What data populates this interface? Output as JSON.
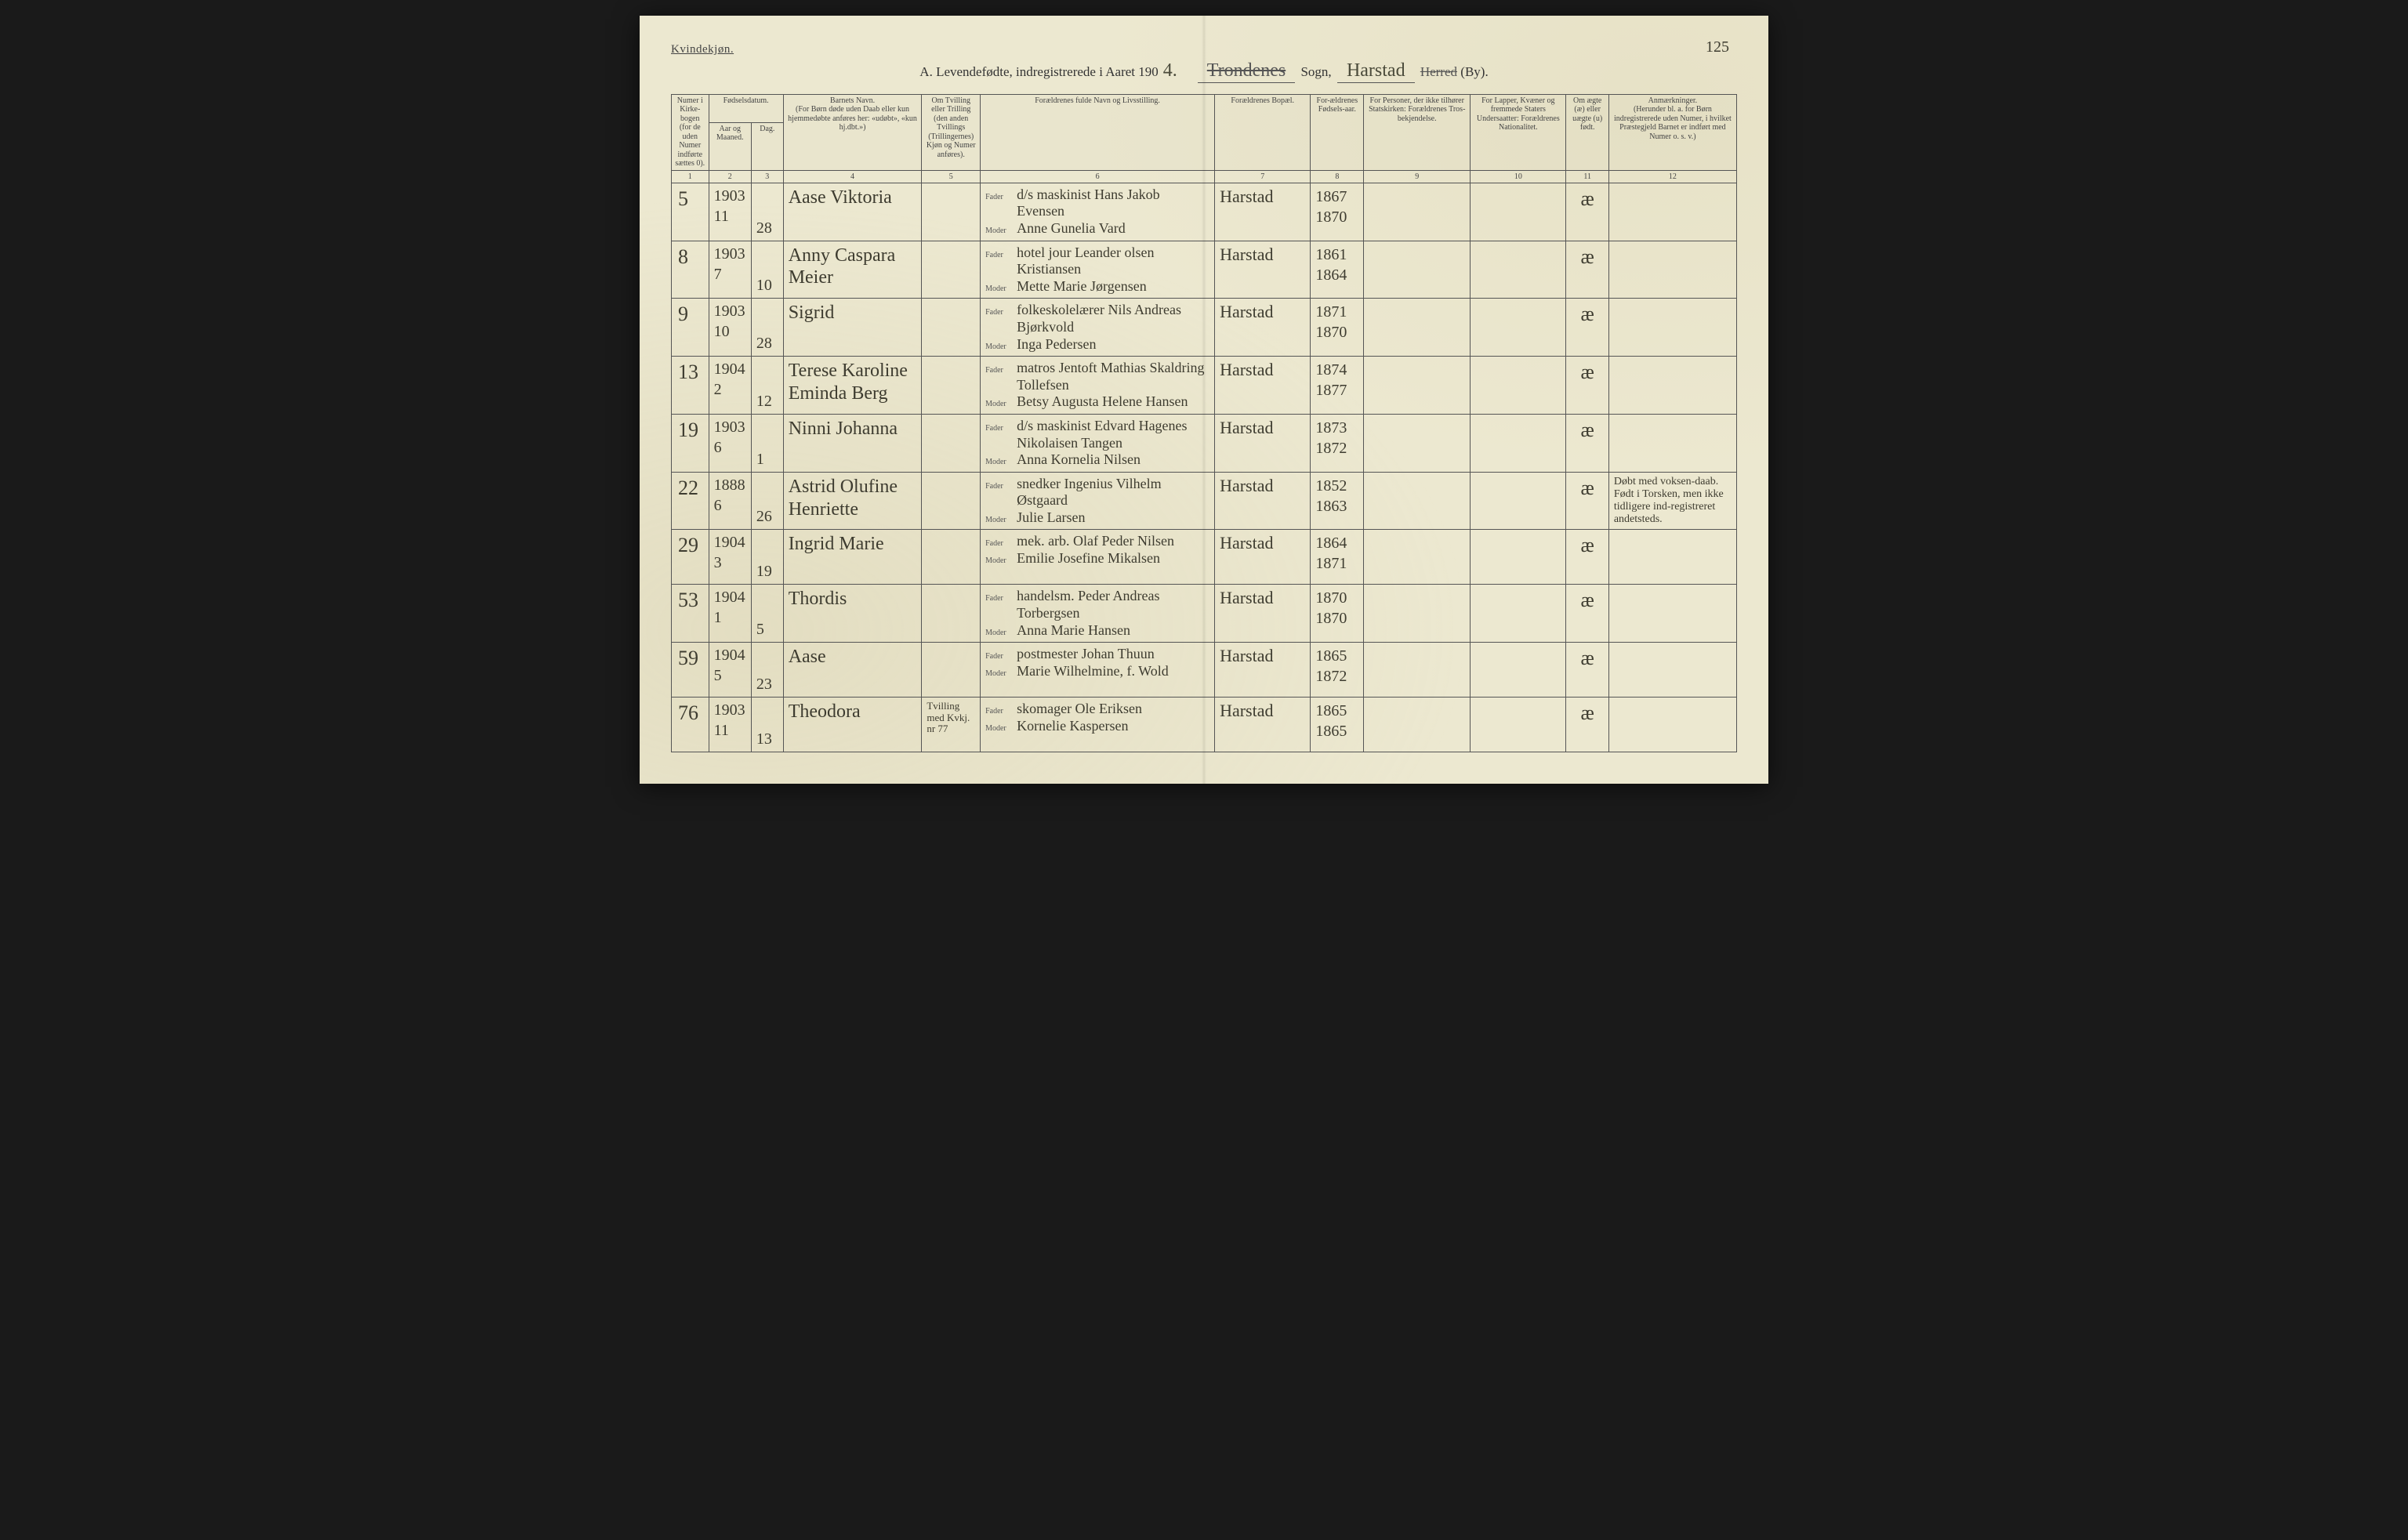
{
  "page": {
    "gender_label": "Kvindekjøn.",
    "page_number_handwritten": "125",
    "title_prefix": "A.  Levendefødte, indregistrerede i Aaret 190",
    "year_last_digit": "4.",
    "struck_word": "Trondenes",
    "sogn_label": "Sogn,",
    "sogn_value": "Harstad",
    "herred_label_struck": "Herred",
    "by_label": "(By)."
  },
  "headers": {
    "col1_a": "Numer i Kirke-bogen",
    "col1_b": "(for de uden Numer indførte sættes 0).",
    "col2_group": "Fødselsdatum.",
    "col2a": "Aar og Maaned.",
    "col2b": "Dag.",
    "col3": "Barnets Navn.",
    "col3_sub": "(For Børn døde uden Daab eller kun hjemmedøbte anføres her: «udøbt», «kun hj.dbt.»)",
    "col4": "Om Tvilling eller Trilling (den anden Tvillings (Trillingernes) Kjøn og Numer anføres).",
    "col5": "Forældrenes fulde Navn og Livsstilling.",
    "col6": "Forældrenes Bopæl.",
    "col7": "For-ældrenes Fødsels-aar.",
    "col8": "For Personer, der ikke tilhører Statskirken: Forældrenes Tros-bekjendelse.",
    "col9": "For Lapper, Kvæner og fremmede Staters Undersaatter: Forældrenes Nationalitet.",
    "col10": "Om ægte (æ) eller uægte (u) født.",
    "col11": "Anmærkninger.",
    "col11_sub": "(Herunder bl. a. for Børn indregistrerede uden Numer, i hvilket Præstegjeld Barnet er indført med Numer o. s. v.)",
    "father_label": "Fader",
    "mother_label": "Moder"
  },
  "colnums": [
    "1",
    "2",
    "3",
    "4",
    "5",
    "6",
    "7",
    "8",
    "9",
    "10",
    "11",
    "12"
  ],
  "rows": [
    {
      "num": "5",
      "year_month": "1903",
      "month": "11",
      "day": "28",
      "child_name": "Aase Viktoria",
      "twin": "",
      "father": "d/s maskinist Hans Jakob Evensen",
      "mother": "Anne Gunelia Vard",
      "residence": "Harstad",
      "father_year": "1867",
      "mother_year": "1870",
      "col8": "",
      "col9": "",
      "legit": "æ",
      "remarks": ""
    },
    {
      "num": "8",
      "year_month": "1903",
      "month": "7",
      "day": "10",
      "child_name": "Anny Caspara Meier",
      "twin": "",
      "father": "hotel jour Leander olsen Kristiansen",
      "mother": "Mette Marie Jørgensen",
      "residence": "Harstad",
      "father_year": "1861",
      "mother_year": "1864",
      "col8": "",
      "col9": "",
      "legit": "æ",
      "remarks": ""
    },
    {
      "num": "9",
      "year_month": "1903",
      "month": "10",
      "day": "28",
      "child_name": "Sigrid",
      "twin": "",
      "father": "folkeskolelærer Nils Andreas Bjørkvold",
      "mother": "Inga Pedersen",
      "residence": "Harstad",
      "father_year": "1871",
      "mother_year": "1870",
      "col8": "",
      "col9": "",
      "legit": "æ",
      "remarks": ""
    },
    {
      "num": "13",
      "year_month": "1904",
      "month": "2",
      "day": "12",
      "child_name": "Terese Karoline Eminda Berg",
      "twin": "",
      "father": "matros Jentoft Mathias Skaldring Tollefsen",
      "mother": "Betsy Augusta Helene Hansen",
      "residence": "Harstad",
      "father_year": "1874",
      "mother_year": "1877",
      "col8": "",
      "col9": "",
      "legit": "æ",
      "remarks": ""
    },
    {
      "num": "19",
      "year_month": "1903",
      "month": "6",
      "day": "1",
      "child_name": "Ninni Johanna",
      "twin": "",
      "father": "d/s maskinist Edvard Hagenes Nikolaisen Tangen",
      "mother": "Anna Kornelia Nilsen",
      "residence": "Harstad",
      "father_year": "1873",
      "mother_year": "1872",
      "col8": "",
      "col9": "",
      "legit": "æ",
      "remarks": ""
    },
    {
      "num": "22",
      "year_month": "1888",
      "month": "6",
      "day": "26",
      "child_name": "Astrid Olufine Henriette",
      "twin": "",
      "father": "snedker Ingenius Vilhelm Østgaard",
      "mother": "Julie Larsen",
      "residence": "Harstad",
      "father_year": "1852",
      "mother_year": "1863",
      "col8": "",
      "col9": "",
      "legit": "æ",
      "remarks": "Døbt med voksen-daab. Født i Torsken, men ikke tidligere ind-registreret andetsteds."
    },
    {
      "num": "29",
      "year_month": "1904",
      "month": "3",
      "day": "19",
      "child_name": "Ingrid Marie",
      "twin": "",
      "father": "mek. arb. Olaf Peder Nilsen",
      "mother": "Emilie Josefine Mikalsen",
      "residence": "Harstad",
      "father_year": "1864",
      "mother_year": "1871",
      "col8": "",
      "col9": "",
      "legit": "æ",
      "remarks": ""
    },
    {
      "num": "53",
      "year_month": "1904",
      "month": "1",
      "day": "5",
      "child_name": "Thordis",
      "twin": "",
      "father": "handelsm. Peder Andreas Torbergsen",
      "mother": "Anna Marie Hansen",
      "residence": "Harstad",
      "father_year": "1870",
      "mother_year": "1870",
      "col8": "",
      "col9": "",
      "legit": "æ",
      "remarks": ""
    },
    {
      "num": "59",
      "year_month": "1904",
      "month": "5",
      "day": "23",
      "child_name": "Aase",
      "twin": "",
      "father": "postmester Johan Thuun",
      "mother": "Marie Wilhelmine, f. Wold",
      "residence": "Harstad",
      "father_year": "1865",
      "mother_year": "1872",
      "col8": "",
      "col9": "",
      "legit": "æ",
      "remarks": ""
    },
    {
      "num": "76",
      "year_month": "1903",
      "month": "11",
      "day": "13",
      "child_name": "Theodora",
      "twin": "Tvilling med Kvkj. nr 77",
      "father": "skomager Ole Eriksen",
      "mother": "Kornelie Kaspersen",
      "residence": "Harstad",
      "father_year": "1865",
      "mother_year": "1865",
      "col8": "",
      "col9": "",
      "legit": "æ",
      "remarks": ""
    }
  ]
}
